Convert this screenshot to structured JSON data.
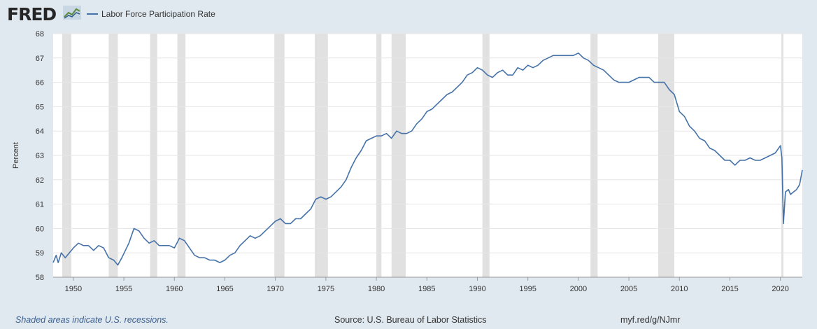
{
  "brand": {
    "logo_text": "FRED",
    "logo_icon": "chart-line-icon"
  },
  "footer": {
    "note": "Shaded areas indicate U.S. recessions.",
    "source": "Source: U.S. Bureau of Labor Statistics",
    "link": "myf.red/g/NJmr"
  },
  "colors": {
    "line": "#4572a7",
    "plot_bg": "#ffffff",
    "page_bg": "#e1e9f0",
    "recession": "#e1e1e1",
    "grid": "#e6e6e6"
  },
  "chart_data": {
    "type": "line",
    "title": "",
    "xlabel": "",
    "ylabel": "Percent",
    "xlim": [
      1948.0,
      2022.17
    ],
    "ylim": [
      58,
      68
    ],
    "grid": true,
    "legend": "top-left",
    "x_ticks": [
      1950,
      1955,
      1960,
      1965,
      1970,
      1975,
      1980,
      1985,
      1990,
      1995,
      2000,
      2005,
      2010,
      2015,
      2020
    ],
    "y_ticks": [
      58,
      59,
      60,
      61,
      62,
      63,
      64,
      65,
      66,
      67,
      68
    ],
    "recessions": [
      [
        1948.9,
        1949.8
      ],
      [
        1953.5,
        1954.4
      ],
      [
        1957.6,
        1958.3
      ],
      [
        1960.3,
        1961.1
      ],
      [
        1969.9,
        1970.9
      ],
      [
        1973.9,
        1975.2
      ],
      [
        1980.0,
        1980.5
      ],
      [
        1981.5,
        1982.9
      ],
      [
        1990.5,
        1991.2
      ],
      [
        2001.2,
        2001.9
      ],
      [
        2007.9,
        2009.5
      ],
      [
        2020.1,
        2020.3
      ]
    ],
    "series": [
      {
        "name": "Labor Force Participation Rate",
        "x": [
          1948.0,
          1948.3,
          1948.5,
          1948.8,
          1949.2,
          1949.6,
          1950.0,
          1950.5,
          1951.0,
          1951.5,
          1952.0,
          1952.5,
          1953.0,
          1953.5,
          1954.0,
          1954.4,
          1954.8,
          1955.5,
          1956.0,
          1956.5,
          1957.0,
          1957.5,
          1958.0,
          1958.5,
          1959.0,
          1959.5,
          1960.0,
          1960.5,
          1961.0,
          1961.5,
          1962.0,
          1962.5,
          1963.0,
          1963.5,
          1964.0,
          1964.5,
          1965.0,
          1965.5,
          1966.0,
          1966.5,
          1967.0,
          1967.5,
          1968.0,
          1968.5,
          1969.0,
          1969.5,
          1970.0,
          1970.5,
          1971.0,
          1971.5,
          1972.0,
          1972.5,
          1973.0,
          1973.5,
          1974.0,
          1974.5,
          1975.0,
          1975.5,
          1976.0,
          1976.5,
          1977.0,
          1977.5,
          1978.0,
          1978.5,
          1979.0,
          1979.5,
          1980.0,
          1980.5,
          1981.0,
          1981.5,
          1982.0,
          1982.5,
          1983.0,
          1983.5,
          1984.0,
          1984.5,
          1985.0,
          1985.5,
          1986.0,
          1986.5,
          1987.0,
          1987.5,
          1988.0,
          1988.5,
          1989.0,
          1989.5,
          1990.0,
          1990.5,
          1991.0,
          1991.5,
          1992.0,
          1992.5,
          1993.0,
          1993.5,
          1994.0,
          1994.5,
          1995.0,
          1995.5,
          1996.0,
          1996.5,
          1997.0,
          1997.5,
          1998.0,
          1998.5,
          1999.0,
          1999.5,
          2000.0,
          2000.5,
          2001.0,
          2001.5,
          2002.0,
          2002.5,
          2003.0,
          2003.5,
          2004.0,
          2004.5,
          2005.0,
          2005.5,
          2006.0,
          2006.5,
          2007.0,
          2007.5,
          2008.0,
          2008.5,
          2009.0,
          2009.5,
          2010.0,
          2010.5,
          2011.0,
          2011.5,
          2012.0,
          2012.5,
          2013.0,
          2013.5,
          2014.0,
          2014.5,
          2015.0,
          2015.5,
          2016.0,
          2016.5,
          2017.0,
          2017.5,
          2018.0,
          2018.5,
          2019.0,
          2019.5,
          2020.0,
          2020.15,
          2020.3,
          2020.5,
          2020.8,
          2021.0,
          2021.3,
          2021.6,
          2021.9,
          2022.17
        ],
        "values": [
          58.6,
          58.9,
          58.6,
          59.0,
          58.8,
          59.0,
          59.2,
          59.4,
          59.3,
          59.3,
          59.1,
          59.3,
          59.2,
          58.8,
          58.7,
          58.5,
          58.8,
          59.4,
          60.0,
          59.9,
          59.6,
          59.4,
          59.5,
          59.3,
          59.3,
          59.3,
          59.2,
          59.6,
          59.5,
          59.2,
          58.9,
          58.8,
          58.8,
          58.7,
          58.7,
          58.6,
          58.7,
          58.9,
          59.0,
          59.3,
          59.5,
          59.7,
          59.6,
          59.7,
          59.9,
          60.1,
          60.3,
          60.4,
          60.2,
          60.2,
          60.4,
          60.4,
          60.6,
          60.8,
          61.2,
          61.3,
          61.2,
          61.3,
          61.5,
          61.7,
          62.0,
          62.5,
          62.9,
          63.2,
          63.6,
          63.7,
          63.8,
          63.8,
          63.9,
          63.7,
          64.0,
          63.9,
          63.9,
          64.0,
          64.3,
          64.5,
          64.8,
          64.9,
          65.1,
          65.3,
          65.5,
          65.6,
          65.8,
          66.0,
          66.3,
          66.4,
          66.6,
          66.5,
          66.3,
          66.2,
          66.4,
          66.5,
          66.3,
          66.3,
          66.6,
          66.5,
          66.7,
          66.6,
          66.7,
          66.9,
          67.0,
          67.1,
          67.1,
          67.1,
          67.1,
          67.1,
          67.2,
          67.0,
          66.9,
          66.7,
          66.6,
          66.5,
          66.3,
          66.1,
          66.0,
          66.0,
          66.0,
          66.1,
          66.2,
          66.2,
          66.2,
          66.0,
          66.0,
          66.0,
          65.7,
          65.5,
          64.8,
          64.6,
          64.2,
          64.0,
          63.7,
          63.6,
          63.3,
          63.2,
          63.0,
          62.8,
          62.8,
          62.6,
          62.8,
          62.8,
          62.9,
          62.8,
          62.8,
          62.9,
          63.0,
          63.1,
          63.4,
          62.9,
          60.2,
          61.5,
          61.6,
          61.4,
          61.5,
          61.6,
          61.8,
          62.4
        ]
      }
    ]
  }
}
